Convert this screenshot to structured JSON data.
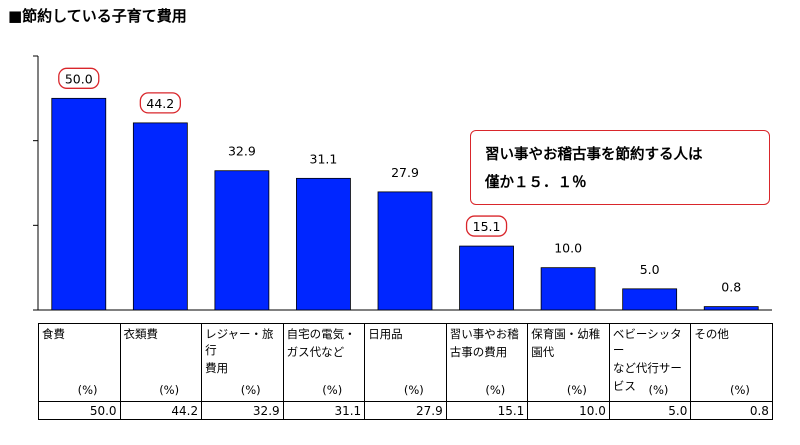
{
  "title": "■節約している子育て費用",
  "callout": {
    "line1": "習い事やお稽古事を節約する人は",
    "line2": "僅か１５．１％"
  },
  "colors": {
    "bar": "#0026ff",
    "highlight": "#d9262b",
    "axis": "#000000"
  },
  "chart_data": {
    "type": "bar",
    "categories": [
      "食費",
      "衣類費",
      "レジャー・旅行費用",
      "自宅の電気・ガス代など",
      "日用品",
      "習い事やお稽古事の費用",
      "保育園・幼稚園代",
      "ベビーシッターなど代行サービス",
      "その他"
    ],
    "table_labels": [
      [
        "食費"
      ],
      [
        "衣類費"
      ],
      [
        "レジャー・旅行",
        "費用"
      ],
      [
        "自宅の電気・",
        "ガス代など"
      ],
      [
        "日用品"
      ],
      [
        "習い事やお稽",
        "古事の費用"
      ],
      [
        "保育園・幼稚",
        "園代"
      ],
      [
        "ベビーシッター",
        "など代行サー",
        "ビス"
      ],
      [
        "その他"
      ]
    ],
    "unit": "(%)",
    "values": [
      50.0,
      44.2,
      32.9,
      31.1,
      27.9,
      15.1,
      10.0,
      5.0,
      0.8
    ],
    "value_labels": [
      "50.0",
      "44.2",
      "32.9",
      "31.1",
      "27.9",
      "15.1",
      "10.0",
      "5.0",
      "0.8"
    ],
    "highlighted": [
      0,
      1,
      5
    ],
    "ylim": [
      0,
      60
    ]
  }
}
